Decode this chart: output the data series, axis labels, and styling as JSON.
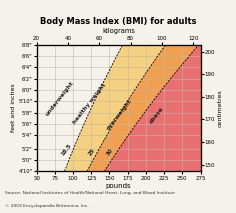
{
  "title": "Body Mass Index (BMI) for adults",
  "xlabel_bottom": "pounds",
  "xlabel_top": "kilograms",
  "ylabel_left": "feet and inches",
  "ylabel_right": "centimetres",
  "pounds_ticks": [
    50,
    75,
    100,
    125,
    150,
    175,
    200,
    225,
    250,
    275
  ],
  "kg_ticks": [
    20,
    40,
    60,
    80,
    100,
    120
  ],
  "height_labels_ft": [
    "4'10\"",
    "5'0\"",
    "5'2\"",
    "5'4\"",
    "5'6\"",
    "5'8\"",
    "5'10\"",
    "6'0\"",
    "6'2\"",
    "6'4\"",
    "6'6\"",
    "6'8\""
  ],
  "height_cm": [
    147,
    152,
    157,
    163,
    168,
    173,
    178,
    183,
    188,
    193,
    198,
    203
  ],
  "cm_ticks": [
    150,
    160,
    170,
    180,
    190,
    200
  ],
  "bmi_lines": [
    18.5,
    25,
    30
  ],
  "zone_colors": [
    "#f5f2ec",
    "#f5d080",
    "#f0a050",
    "#e87070"
  ],
  "fig_bg": "#f5f2ec",
  "grid_color": "#c0b8a8",
  "source_text": "Source: National Institutes of Health/National Heart, Lung, and Blood Institute",
  "copyright_text": "© 2003 Encyclopaedia Britannica, Inc.",
  "pounds_min": 50,
  "pounds_max": 275,
  "cm_min": 147,
  "cm_max": 203
}
